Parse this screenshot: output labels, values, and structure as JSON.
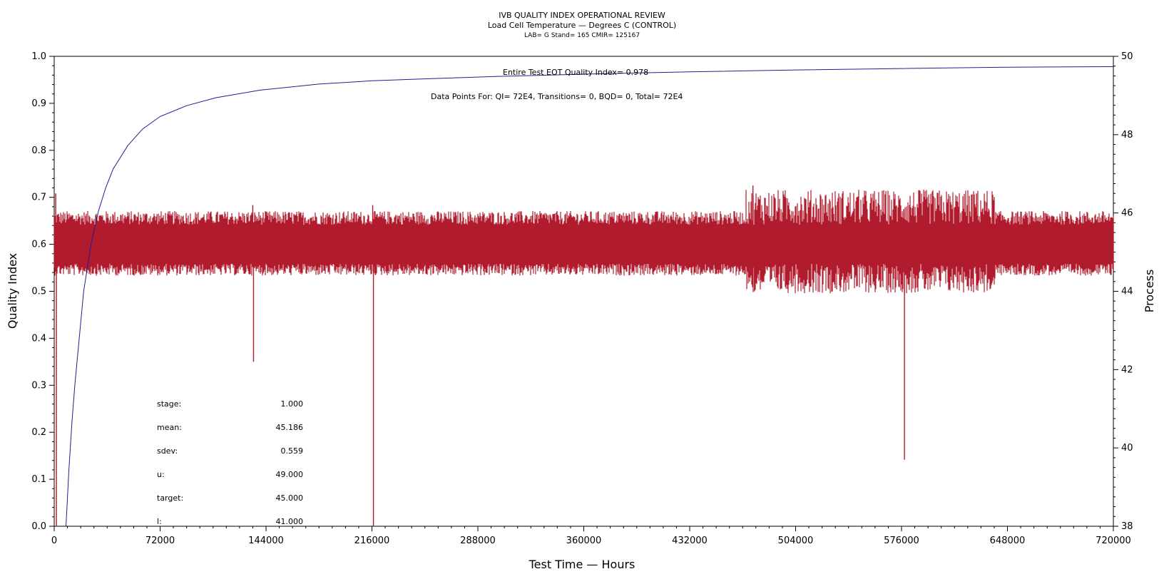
{
  "chart_data": {
    "type": "line",
    "title": "IVB QUALITY INDEX OPERATIONAL REVIEW",
    "subtitle": "Load Cell Temperature — Degrees C (CONTROL)",
    "subsubtitle": "LAB= G Stand= 165 CMIR= 125167",
    "xlabel": "Test Time — Hours",
    "ylabel_left": "Quality Index",
    "ylabel_right": "Process",
    "xlim": [
      0,
      720000
    ],
    "ylim_left": [
      0,
      1.0
    ],
    "ylim_right": [
      38,
      50
    ],
    "x_ticks": [
      "0",
      "72000",
      "144000",
      "216000",
      "288000",
      "360000",
      "432000",
      "504000",
      "576000",
      "648000",
      "720000"
    ],
    "y_left_ticks": [
      "0.0",
      "0.1",
      "0.2",
      "0.3",
      "0.4",
      "0.5",
      "0.6",
      "0.7",
      "0.8",
      "0.9",
      "1.0"
    ],
    "y_right_ticks": [
      "38",
      "40",
      "42",
      "44",
      "46",
      "48",
      "50"
    ],
    "grid": false,
    "colors": {
      "quality": "#1f1f8f",
      "process": "#b01c2e"
    },
    "annotations": {
      "eot": "Entire Test EOT Quality Index=   0.978",
      "datapoints": "Data Points For: QI=  72E4, Transitions=     0, BQD=     0, Total=  72E4"
    },
    "stats": [
      {
        "label": "stage:",
        "value": "1.000"
      },
      {
        "label": "mean:",
        "value": "45.186"
      },
      {
        "label": "sdev:",
        "value": "0.559"
      },
      {
        "label": "u:",
        "value": "49.000"
      },
      {
        "label": "target:",
        "value": "45.000"
      },
      {
        "label": "l:",
        "value": "41.000"
      }
    ],
    "series": [
      {
        "axis": "left",
        "x": [
          8000,
          10000,
          12000,
          14000,
          17000,
          20000,
          25000,
          30000,
          35000,
          40000,
          50000,
          60000,
          72000,
          90000,
          110000,
          140000,
          180000,
          216000,
          260000,
          300000,
          360000,
          432000,
          504000,
          576000,
          648000,
          720000
        ],
        "values": [
          0.0,
          0.12,
          0.22,
          0.3,
          0.4,
          0.5,
          0.6,
          0.67,
          0.72,
          0.76,
          0.81,
          0.845,
          0.872,
          0.895,
          0.912,
          0.928,
          0.941,
          0.948,
          0.953,
          0.957,
          0.962,
          0.967,
          0.971,
          0.974,
          0.977,
          0.978
        ]
      },
      {
        "axis": "right",
        "mean": 45.186,
        "band": [
          44.7,
          45.7
        ],
        "spikes": [
          {
            "x": 1000,
            "y": 46.5
          },
          {
            "x": 1500,
            "y": 38.0
          },
          {
            "x": 135500,
            "y": 42.2
          },
          {
            "x": 135000,
            "y": 46.2
          },
          {
            "x": 217000,
            "y": 38.0
          },
          {
            "x": 216500,
            "y": 46.2
          },
          {
            "x": 475000,
            "y": 46.7
          },
          {
            "x": 476000,
            "y": 44.0
          },
          {
            "x": 578000,
            "y": 39.7
          },
          {
            "x": 577500,
            "y": 46.1
          },
          {
            "x": 627000,
            "y": 46.5
          },
          {
            "x": 628000,
            "y": 44.2
          }
        ]
      }
    ]
  }
}
